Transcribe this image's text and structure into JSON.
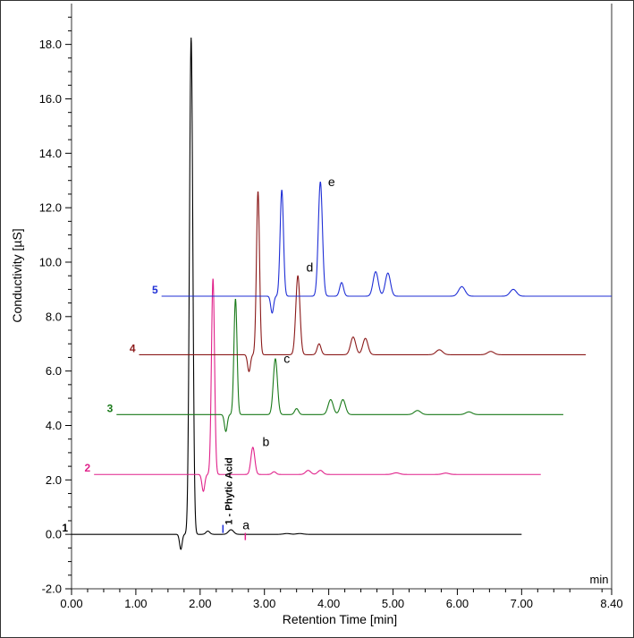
{
  "chart_data": {
    "type": "line",
    "xlabel": "Retention Time [min]",
    "ylabel": "Conductivity [µS]",
    "x_unit": "min",
    "xlim": [
      0.0,
      8.4
    ],
    "ylim": [
      -2.0,
      19.5
    ],
    "x_ticks": [
      "0.00",
      "1.00",
      "2.00",
      "3.00",
      "4.00",
      "5.00",
      "6.00",
      "7.00",
      "8.40"
    ],
    "y_ticks": [
      "-2.0",
      "0.0",
      "2.0",
      "4.0",
      "6.0",
      "8.0",
      "10.0",
      "12.0",
      "14.0",
      "16.0",
      "18.0"
    ],
    "x_tick_values": [
      0,
      1,
      2,
      3,
      4,
      5,
      6,
      7,
      8.4
    ],
    "y_tick_values": [
      -2,
      0,
      2,
      4,
      6,
      8,
      10,
      12,
      14,
      16,
      18
    ],
    "series": [
      {
        "name": "1",
        "color": "#000000",
        "baseline": 0.0,
        "x_start": 0.0,
        "x_end": 7.0,
        "peaks": [
          {
            "x": 1.7,
            "h": -0.55,
            "w": 0.02
          },
          {
            "x": 1.86,
            "h": 18.25,
            "w": 0.026
          },
          {
            "x": 2.12,
            "h": 0.12,
            "w": 0.03
          },
          {
            "x": 2.48,
            "h": 0.17,
            "w": 0.04
          },
          {
            "x": 3.35,
            "h": 0.03,
            "w": 0.05
          },
          {
            "x": 3.55,
            "h": 0.03,
            "w": 0.05
          }
        ]
      },
      {
        "name": "2",
        "color": "#e0218a",
        "baseline": 2.2,
        "x_start": 0.35,
        "x_end": 7.3,
        "peaks": [
          {
            "x": 2.05,
            "h": -0.62,
            "w": 0.022
          },
          {
            "x": 2.2,
            "h": 7.2,
            "w": 0.024
          },
          {
            "x": 2.82,
            "h": 1.0,
            "w": 0.03
          },
          {
            "x": 3.15,
            "h": 0.1,
            "w": 0.03
          },
          {
            "x": 3.68,
            "h": 0.15,
            "w": 0.04
          },
          {
            "x": 3.87,
            "h": 0.15,
            "w": 0.04
          },
          {
            "x": 5.05,
            "h": 0.06,
            "w": 0.05
          },
          {
            "x": 5.82,
            "h": 0.05,
            "w": 0.05
          }
        ]
      },
      {
        "name": "3",
        "color": "#1a7a1a",
        "baseline": 4.4,
        "x_start": 0.7,
        "x_end": 7.65,
        "peaks": [
          {
            "x": 2.4,
            "h": -0.62,
            "w": 0.022
          },
          {
            "x": 2.55,
            "h": 4.25,
            "w": 0.024
          },
          {
            "x": 3.17,
            "h": 2.05,
            "w": 0.032
          },
          {
            "x": 3.5,
            "h": 0.22,
            "w": 0.03
          },
          {
            "x": 4.03,
            "h": 0.55,
            "w": 0.04
          },
          {
            "x": 4.22,
            "h": 0.55,
            "w": 0.04
          },
          {
            "x": 5.38,
            "h": 0.15,
            "w": 0.05
          },
          {
            "x": 6.18,
            "h": 0.1,
            "w": 0.05
          }
        ]
      },
      {
        "name": "4",
        "color": "#8b1a1a",
        "baseline": 6.6,
        "x_start": 1.05,
        "x_end": 8.0,
        "peaks": [
          {
            "x": 2.76,
            "h": -0.62,
            "w": 0.022
          },
          {
            "x": 2.9,
            "h": 6.0,
            "w": 0.024
          },
          {
            "x": 3.52,
            "h": 2.9,
            "w": 0.032
          },
          {
            "x": 3.85,
            "h": 0.4,
            "w": 0.03
          },
          {
            "x": 4.38,
            "h": 0.65,
            "w": 0.04
          },
          {
            "x": 4.57,
            "h": 0.6,
            "w": 0.04
          },
          {
            "x": 5.72,
            "h": 0.18,
            "w": 0.05
          },
          {
            "x": 6.52,
            "h": 0.12,
            "w": 0.05
          }
        ]
      },
      {
        "name": "5",
        "color": "#1f2fd6",
        "baseline": 8.75,
        "x_start": 1.4,
        "x_end": 8.4,
        "peaks": [
          {
            "x": 3.12,
            "h": -0.62,
            "w": 0.022
          },
          {
            "x": 3.27,
            "h": 3.9,
            "w": 0.026
          },
          {
            "x": 3.87,
            "h": 4.2,
            "w": 0.032
          },
          {
            "x": 4.2,
            "h": 0.5,
            "w": 0.03
          },
          {
            "x": 4.73,
            "h": 0.9,
            "w": 0.04
          },
          {
            "x": 4.92,
            "h": 0.85,
            "w": 0.04
          },
          {
            "x": 6.07,
            "h": 0.35,
            "w": 0.05
          },
          {
            "x": 6.87,
            "h": 0.25,
            "w": 0.05
          }
        ]
      }
    ],
    "annotations": [
      {
        "text": "a",
        "x": 2.66,
        "y": 0.18
      },
      {
        "text": "b",
        "x": 2.97,
        "y": 3.25
      },
      {
        "text": "c",
        "x": 3.3,
        "y": 6.3
      },
      {
        "text": "d",
        "x": 3.65,
        "y": 9.65
      },
      {
        "text": "e",
        "x": 3.99,
        "y": 12.8
      }
    ],
    "peak_marker": {
      "text": "1 - Phytic Acid",
      "x": 2.48,
      "y": 0.15
    }
  }
}
